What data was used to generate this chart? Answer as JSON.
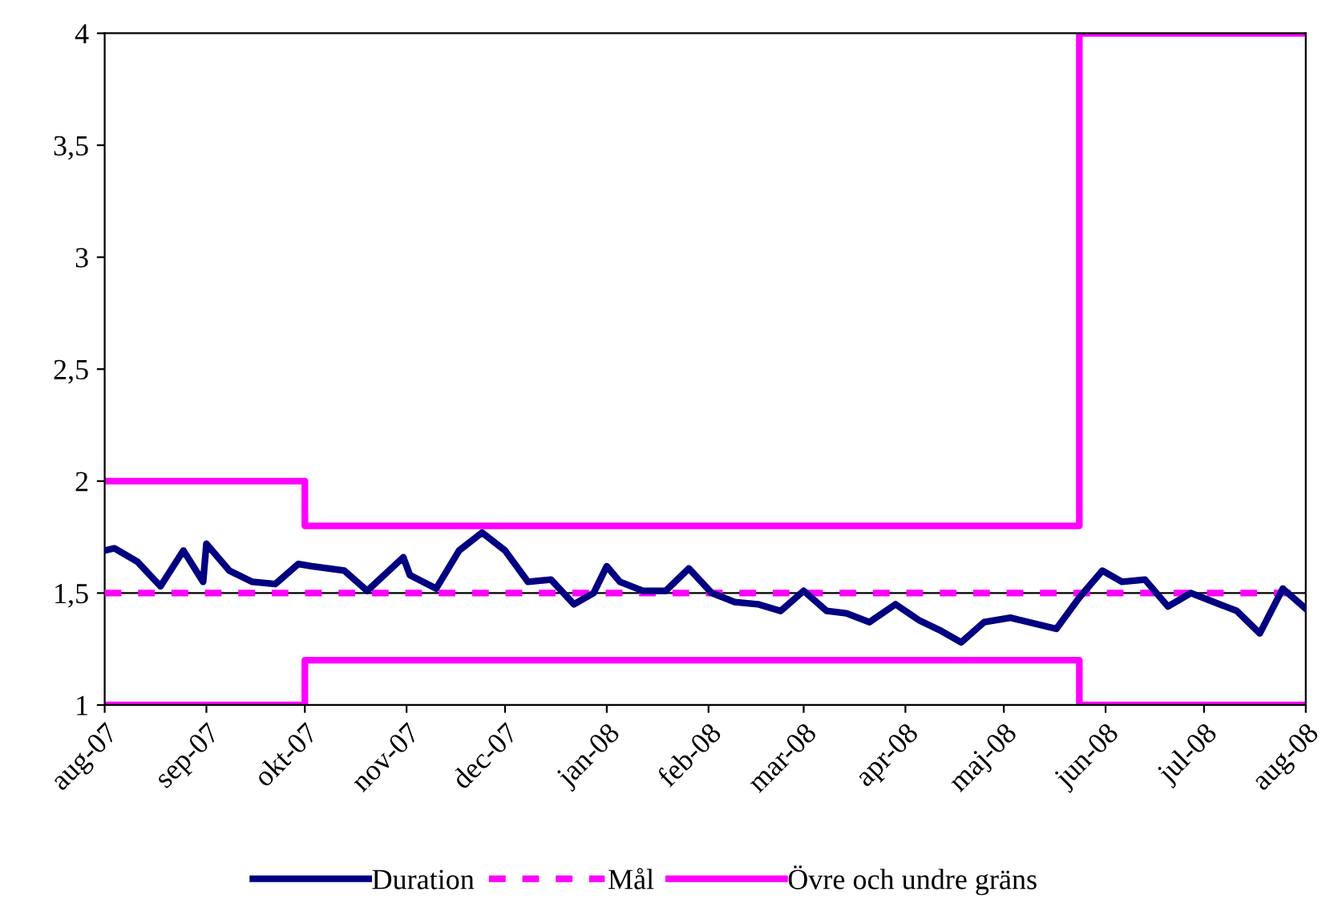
{
  "chart_data": {
    "type": "line",
    "legend": "bottom",
    "grid": false,
    "xlim": [
      "2007-08-01",
      "2008-08-01"
    ],
    "xticks": [
      {
        "value": "2007-08-01",
        "label": "aug-07"
      },
      {
        "value": "2007-09-01",
        "label": "sep-07"
      },
      {
        "value": "2007-10-01",
        "label": "okt-07"
      },
      {
        "value": "2007-11-01",
        "label": "nov-07"
      },
      {
        "value": "2007-12-01",
        "label": "dec-07"
      },
      {
        "value": "2008-01-01",
        "label": "jan-08"
      },
      {
        "value": "2008-02-01",
        "label": "feb-08"
      },
      {
        "value": "2008-03-01",
        "label": "mar-08"
      },
      {
        "value": "2008-04-01",
        "label": "apr-08"
      },
      {
        "value": "2008-05-01",
        "label": "maj-08"
      },
      {
        "value": "2008-06-01",
        "label": "jun-08"
      },
      {
        "value": "2008-07-01",
        "label": "jul-08"
      },
      {
        "value": "2008-08-01",
        "label": "aug-08"
      }
    ],
    "ylim": [
      1,
      4
    ],
    "yticks": [
      1,
      {
        "value": 1.5,
        "label": "1,5"
      },
      2,
      {
        "value": 2.5,
        "label": "2,5"
      },
      3,
      {
        "value": 3.5,
        "label": "3,5"
      },
      4
    ],
    "ref_lines": [
      {
        "axis": "y",
        "value": 1.5,
        "color": "#000000"
      }
    ],
    "series": [
      {
        "name": "Duration",
        "color": "#000080",
        "line_style": "solid",
        "x": [
          "2007-08-01",
          "2007-08-04",
          "2007-08-11",
          "2007-08-18",
          "2007-08-25",
          "2007-08-31",
          "2007-09-01",
          "2007-09-08",
          "2007-09-15",
          "2007-09-22",
          "2007-09-29",
          "2007-10-03",
          "2007-10-13",
          "2007-10-20",
          "2007-10-31",
          "2007-11-02",
          "2007-11-10",
          "2007-11-17",
          "2007-11-24",
          "2007-12-01",
          "2007-12-08",
          "2007-12-15",
          "2007-12-22",
          "2007-12-28",
          "2008-01-01",
          "2008-01-05",
          "2008-01-12",
          "2008-01-19",
          "2008-01-26",
          "2008-02-02",
          "2008-02-09",
          "2008-02-16",
          "2008-02-23",
          "2008-03-01",
          "2008-03-08",
          "2008-03-14",
          "2008-03-21",
          "2008-03-29",
          "2008-04-05",
          "2008-04-12",
          "2008-04-18",
          "2008-04-25",
          "2008-05-03",
          "2008-05-17",
          "2008-05-24",
          "2008-05-31",
          "2008-06-06",
          "2008-06-13",
          "2008-06-20",
          "2008-06-27",
          "2008-07-11",
          "2008-07-18",
          "2008-07-25",
          "2008-08-01"
        ],
        "values": [
          1.69,
          1.7,
          1.64,
          1.53,
          1.69,
          1.55,
          1.72,
          1.6,
          1.55,
          1.54,
          1.63,
          1.62,
          1.6,
          1.51,
          1.66,
          1.58,
          1.52,
          1.69,
          1.77,
          1.69,
          1.55,
          1.56,
          1.45,
          1.5,
          1.62,
          1.55,
          1.51,
          1.51,
          1.61,
          1.5,
          1.46,
          1.45,
          1.42,
          1.51,
          1.42,
          1.41,
          1.37,
          1.45,
          1.38,
          1.33,
          1.28,
          1.37,
          1.39,
          1.34,
          1.48,
          1.6,
          1.55,
          1.56,
          1.44,
          1.5,
          1.42,
          1.32,
          1.52,
          1.43
        ]
      },
      {
        "name": "Mål",
        "color": "#ff00ff",
        "line_style": "dashed",
        "x": [
          "2007-08-01",
          "2008-08-01"
        ],
        "values": [
          1.5,
          1.5
        ]
      },
      {
        "name": "Övre och undre gräns",
        "type": "step",
        "color": "#ff00ff",
        "line_style": "solid",
        "x": [
          "2007-08-01",
          "2007-10-01",
          "2008-05-24",
          "2008-08-01"
        ],
        "values": [
          2,
          1.8,
          4,
          4
        ]
      },
      {
        "type": "step",
        "color": "#ff00ff",
        "line_style": "solid",
        "x": [
          "2007-08-01",
          "2007-10-01",
          "2008-05-24",
          "2008-08-01"
        ],
        "values": [
          1,
          1.2,
          1,
          1
        ]
      }
    ]
  }
}
